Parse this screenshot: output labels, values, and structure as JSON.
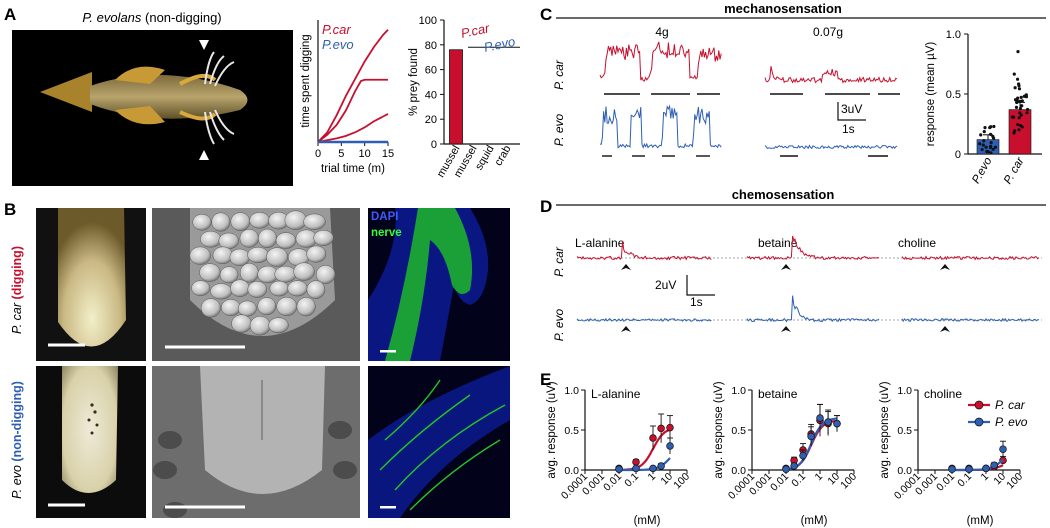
{
  "colors": {
    "car": "#c8102e",
    "evo": "#2f5fb3",
    "nerve": "#22c62a",
    "dapi": "#1a2fd6"
  },
  "panelA": {
    "label": "A",
    "photo_title_species": "P. evolans",
    "photo_title_suffix": " (non-digging)",
    "chart_data": [
      {
        "type": "line",
        "xlabel": "trial time (m)",
        "ylabel": "time spent digging",
        "xlim": [
          0,
          15
        ],
        "xticks": [
          "0",
          "5",
          "10",
          "15"
        ],
        "legend": [
          "P.car",
          "P.evo"
        ],
        "series": [
          {
            "name": "P.car",
            "x": [
              0,
              2,
              4,
              6,
              8,
              10,
              12,
              14,
              15
            ],
            "y": [
              0,
              0.8,
              2.2,
              3.8,
              5.2,
              6.6,
              7.8,
              8.8,
              9.2
            ]
          },
          {
            "name": "P.car",
            "x": [
              0,
              2,
              4,
              6,
              7,
              8,
              9.2,
              10,
              15
            ],
            "y": [
              0,
              0.6,
              1.4,
              2.6,
              3.4,
              4.2,
              5.0,
              5.1,
              5.1
            ]
          },
          {
            "name": "P.car",
            "x": [
              0,
              2,
              4,
              6,
              8,
              10,
              12,
              14,
              15
            ],
            "y": [
              0,
              0.15,
              0.3,
              0.5,
              0.8,
              1.2,
              1.7,
              2.1,
              2.3
            ]
          },
          {
            "name": "P.evo",
            "x": [
              0,
              15
            ],
            "y": [
              0,
              0
            ]
          }
        ]
      },
      {
        "type": "bar",
        "ylabel": "% prey found",
        "ylim": [
          0,
          100
        ],
        "yticks": [
          "0",
          "20",
          "40",
          "60",
          "80",
          "100"
        ],
        "categories": [
          "mussel",
          "mussel",
          "squid",
          "crab"
        ],
        "series_labels": [
          "P.car",
          "P.evo"
        ],
        "values": [
          76,
          0,
          0,
          0
        ]
      }
    ]
  },
  "panelB": {
    "label": "B",
    "row1_species": "P. car",
    "row1_condition": "(digging)",
    "row2_species": "P. evo",
    "row2_condition": "(non-digging)",
    "stain_dapi": "DAPI",
    "stain_nerve": "nerve"
  },
  "panelC": {
    "label": "C",
    "title": "mechanosensation",
    "stim_high": "4g",
    "stim_low": "0.07g",
    "row1": "P. car",
    "row2": "P. evo",
    "scale_v": "3uV",
    "scale_t": "1s",
    "chart_data": {
      "type": "bar",
      "ylabel": "response (mean µV)",
      "ylim": [
        0,
        1.0
      ],
      "yticks": [
        "0",
        "0.5",
        "1.0"
      ],
      "categories": [
        "P.evo",
        "P. car"
      ],
      "values": [
        0.12,
        0.37
      ],
      "errors": [
        0.04,
        0.06
      ]
    }
  },
  "panelD": {
    "label": "D",
    "title": "chemosensation",
    "compounds": [
      "L-alanine",
      "betaine",
      "choline"
    ],
    "row1": "P. car",
    "row2": "P. evo",
    "scale_v": "2uV",
    "scale_t": "1s"
  },
  "panelE": {
    "label": "E",
    "xlabel": "(mM)",
    "ylabel": "avg. response (uV)",
    "xticks": [
      "0.0001",
      "0.001",
      "0.01",
      "0.1",
      "1",
      "10",
      "100"
    ],
    "yticks": [
      "0.0",
      "0.5",
      "1.0"
    ],
    "legend": [
      "P. car",
      "P. evo"
    ],
    "chart_data": [
      {
        "type": "scatter",
        "title": "L-alanine",
        "ylim": [
          0,
          1.0
        ],
        "series": [
          {
            "name": "P. car",
            "x": [
              0.01,
              0.1,
              1,
              3,
              10
            ],
            "y": [
              0.02,
              0.1,
              0.4,
              0.52,
              0.53
            ],
            "err": [
              0.01,
              0.03,
              0.15,
              0.18,
              0.15
            ]
          },
          {
            "name": "P. evo",
            "x": [
              0.01,
              0.1,
              1,
              3,
              10
            ],
            "y": [
              0.01,
              0.02,
              0.02,
              0.05,
              0.3
            ],
            "err": [
              0.01,
              0.01,
              0.01,
              0.03,
              0.1
            ]
          }
        ]
      },
      {
        "type": "scatter",
        "title": "betaine",
        "ylim": [
          0,
          1.0
        ],
        "series": [
          {
            "name": "P. car",
            "x": [
              0.01,
              0.03,
              0.1,
              0.3,
              1,
              3,
              10
            ],
            "y": [
              0.02,
              0.12,
              0.25,
              0.45,
              0.62,
              0.58,
              0.58
            ],
            "err": [
              0.01,
              0.04,
              0.08,
              0.12,
              0.2,
              0.15,
              0.1
            ]
          },
          {
            "name": "P. evo",
            "x": [
              0.01,
              0.03,
              0.1,
              0.3,
              1,
              3,
              10
            ],
            "y": [
              0.01,
              0.05,
              0.18,
              0.42,
              0.65,
              0.6,
              0.58
            ],
            "err": [
              0.01,
              0.03,
              0.07,
              0.12,
              0.17,
              0.15,
              0.1
            ]
          }
        ]
      },
      {
        "type": "scatter",
        "title": "choline",
        "ylim": [
          0,
          1.0
        ],
        "series": [
          {
            "name": "P. car",
            "x": [
              0.01,
              0.1,
              1,
              3,
              10
            ],
            "y": [
              0.02,
              0.02,
              0.02,
              0.04,
              0.12
            ],
            "err": [
              0.01,
              0.01,
              0.01,
              0.02,
              0.05
            ]
          },
          {
            "name": "P. evo",
            "x": [
              0.01,
              0.1,
              1,
              3,
              10
            ],
            "y": [
              0.01,
              0.01,
              0.02,
              0.06,
              0.26
            ],
            "err": [
              0.01,
              0.01,
              0.01,
              0.03,
              0.1
            ]
          }
        ]
      }
    ]
  }
}
